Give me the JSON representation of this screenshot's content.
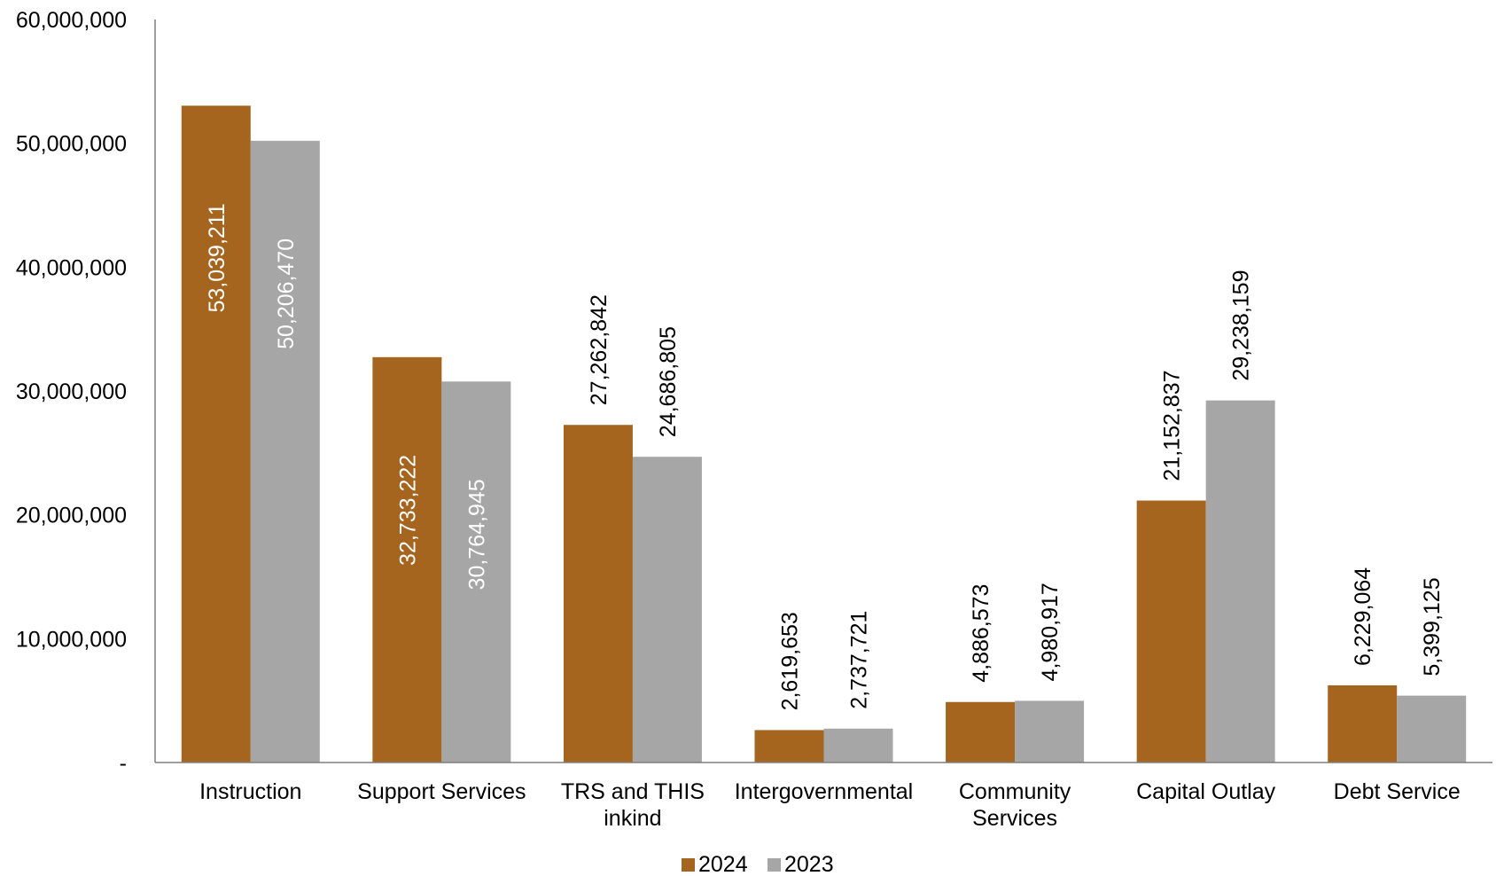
{
  "chart_data": {
    "type": "bar",
    "title": "",
    "xlabel": "",
    "ylabel": "",
    "ylim": [
      0,
      60000000
    ],
    "yticks": [
      {
        "value": 0,
        "label": "-"
      },
      {
        "value": 10000000,
        "label": "10,000,000"
      },
      {
        "value": 20000000,
        "label": "20,000,000"
      },
      {
        "value": 30000000,
        "label": "30,000,000"
      },
      {
        "value": 40000000,
        "label": "40,000,000"
      },
      {
        "value": 50000000,
        "label": "50,000,000"
      },
      {
        "value": 60000000,
        "label": "60,000,000"
      }
    ],
    "categories": [
      [
        "Instruction"
      ],
      [
        "Support Services"
      ],
      [
        "TRS and THIS",
        "inkind"
      ],
      [
        "Intergovernmental"
      ],
      [
        "Community",
        "Services"
      ],
      [
        "Capital Outlay"
      ],
      [
        "Debt Service"
      ]
    ],
    "series": [
      {
        "name": "2024",
        "color": "#A5651F",
        "values": [
          53039211,
          32733222,
          27262842,
          2619653,
          4886573,
          21152837,
          6229064
        ],
        "labels": [
          "53,039,211",
          "32,733,222",
          "27,262,842",
          "2,619,653",
          "4,886,573",
          "21,152,837",
          "6,229,064"
        ]
      },
      {
        "name": "2023",
        "color": "#A6A6A6",
        "values": [
          50206470,
          30764945,
          24686805,
          2737721,
          4980917,
          29238159,
          5399125
        ],
        "labels": [
          "50,206,470",
          "30,764,945",
          "24,686,805",
          "2,737,721",
          "4,980,917",
          "29,238,159",
          "5,399,125"
        ]
      }
    ],
    "label_inside_bar": [
      true,
      true,
      false,
      false,
      false,
      false,
      false
    ],
    "grid": false,
    "legend_position": "bottom-center"
  }
}
